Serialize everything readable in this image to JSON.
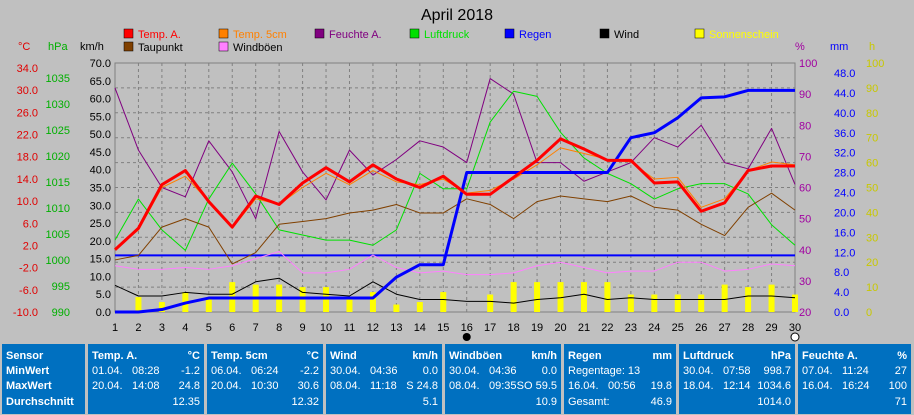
{
  "chart_data": {
    "type": "line",
    "title": "April 2018",
    "x": [
      1,
      2,
      3,
      4,
      5,
      6,
      7,
      8,
      9,
      10,
      11,
      12,
      13,
      14,
      15,
      16,
      17,
      18,
      19,
      20,
      21,
      22,
      23,
      24,
      25,
      26,
      27,
      28,
      29,
      30
    ],
    "axes": {
      "temp": {
        "label": "°C",
        "ticks": [
          "34.0",
          "30.0",
          "26.0",
          "22.0",
          "18.0",
          "14.0",
          "10.0",
          "6.0",
          "2.0",
          "-2.0",
          "-6.0",
          "-10.0"
        ],
        "color": "#e00000",
        "range": [
          -10,
          34
        ]
      },
      "hpa": {
        "label": "hPa",
        "ticks": [
          "1035",
          "1030",
          "1025",
          "1020",
          "1015",
          "1010",
          "1005",
          "1000",
          "995",
          "990"
        ],
        "color": "#00b000",
        "range": [
          988,
          1036.5
        ]
      },
      "kmh": {
        "label": "km/h",
        "ticks": [
          "70.0",
          "65.0",
          "60.0",
          "55.0",
          "50.0",
          "45.0",
          "40.0",
          "35.0",
          "30.0",
          "25.0",
          "20.0",
          "15.0",
          "10.0",
          "5.0",
          "0.0"
        ],
        "color": "#000000",
        "range": [
          0,
          70
        ]
      },
      "pct": {
        "label": "%",
        "ticks": [
          "100",
          "90",
          "80",
          "70",
          "60",
          "50",
          "40",
          "30",
          "20"
        ],
        "color": "#a000a0",
        "range": [
          20,
          100
        ]
      },
      "mm": {
        "label": "mm",
        "ticks": [
          "48.0",
          "44.0",
          "40.0",
          "36.0",
          "32.0",
          "28.0",
          "24.0",
          "20.0",
          "16.0",
          "12.0",
          "8.0",
          "4.0",
          "0.0"
        ],
        "color": "#0000ff",
        "range": [
          0,
          50
        ]
      },
      "h": {
        "label": "h",
        "ticks": [
          "100",
          "90",
          "80",
          "70",
          "60",
          "50",
          "40",
          "30",
          "20",
          "10",
          "0"
        ],
        "color": "#c8c800",
        "range": [
          0,
          100
        ]
      }
    },
    "legend": [
      {
        "name": "Temp. A.",
        "color": "#ff0000"
      },
      {
        "name": "Temp. 5cm",
        "color": "#ff8000"
      },
      {
        "name": "Feuchte A.",
        "color": "#800080"
      },
      {
        "name": "Luftdruck",
        "color": "#00e000"
      },
      {
        "name": "Regen",
        "color": "#0000ff"
      },
      {
        "name": "Wind",
        "color": "#000000"
      },
      {
        "name": "Sonnenschein",
        "color": "#ffff00"
      },
      {
        "name": "Taupunkt",
        "color": "#804000"
      },
      {
        "name": "Windböen",
        "color": "#ff80ff"
      }
    ],
    "series": [
      {
        "name": "Temp. A.",
        "axis": "temp",
        "color": "#ff0000",
        "width": 3,
        "values": [
          1.0,
          4.8,
          12.5,
          15.0,
          9.5,
          5.0,
          10.5,
          9.0,
          12.8,
          15.5,
          13.0,
          16.0,
          13.5,
          12.0,
          14.0,
          10.8,
          10.8,
          13.8,
          16.8,
          20.6,
          18.8,
          16.8,
          16.8,
          12.8,
          13.0,
          7.8,
          9.3,
          15.0,
          15.8,
          15.8
        ]
      },
      {
        "name": "Temp. 5cm",
        "axis": "temp",
        "color": "#ff8000",
        "width": 1,
        "values": [
          1.2,
          4.5,
          12.0,
          14.0,
          9.5,
          4.8,
          10.0,
          9.0,
          12.0,
          14.5,
          12.5,
          15.0,
          13.0,
          12.5,
          13.5,
          11.0,
          11.5,
          13.5,
          16.0,
          19.0,
          18.0,
          17.0,
          16.5,
          13.5,
          13.8,
          8.5,
          10.0,
          15.0,
          16.5,
          16.0
        ]
      },
      {
        "name": "Taupunkt",
        "axis": "temp",
        "color": "#804000",
        "width": 1,
        "values": [
          -0.8,
          0.0,
          5.0,
          6.5,
          5.0,
          -1.5,
          0.5,
          5.5,
          6.0,
          6.5,
          7.5,
          8.0,
          9.0,
          7.5,
          7.5,
          10.0,
          9.0,
          6.5,
          9.5,
          10.5,
          10.0,
          9.5,
          10.5,
          8.5,
          8.0,
          5.5,
          3.5,
          8.5,
          11.0,
          8.0
        ]
      },
      {
        "name": "Feuchte A.",
        "axis": "pct",
        "color": "#800080",
        "width": 1,
        "values": [
          92,
          72,
          60,
          57,
          75,
          65,
          50,
          78,
          65,
          56,
          72,
          64,
          69,
          75,
          73,
          68,
          95,
          90,
          68,
          68,
          62,
          65,
          68,
          76,
          73,
          80,
          68,
          66,
          79,
          61
        ]
      },
      {
        "name": "Luftdruck",
        "axis": "hpa",
        "color": "#00e000",
        "width": 1,
        "values": [
          1002,
          1010,
          1004,
          1000,
          1010,
          1017,
          1011,
          1004,
          1003,
          1002,
          1002,
          1001,
          1004,
          1015,
          1012,
          1012,
          1025,
          1031,
          1030,
          1023,
          1018,
          1015,
          1013,
          1010,
          1012,
          1013,
          1013,
          1011,
          1005,
          1001
        ]
      },
      {
        "name": "Regen",
        "axis": "mm",
        "color": "#0000ff",
        "width": 3,
        "values": [
          0,
          0,
          0.5,
          1.8,
          2.8,
          2.8,
          2.8,
          2.8,
          2.8,
          2.8,
          2.8,
          2.8,
          7.0,
          9.5,
          9.5,
          28.0,
          28.0,
          28.0,
          28.0,
          28.0,
          28.0,
          28.0,
          35.0,
          36.0,
          39.0,
          43.0,
          43.2,
          44.5,
          44.5,
          44.5
        ]
      },
      {
        "name": "Wind",
        "axis": "kmh",
        "color": "#000000",
        "width": 1,
        "values": [
          7.5,
          4.5,
          4.5,
          5.5,
          5.0,
          5.0,
          8.5,
          9.5,
          5.5,
          5.0,
          4.5,
          8.5,
          5.0,
          3.5,
          3.5,
          3.0,
          3.0,
          2.5,
          3.5,
          4.0,
          5.0,
          3.5,
          4.0,
          3.5,
          3.5,
          3.5,
          3.5,
          4.5,
          4.5,
          4.0
        ]
      },
      {
        "name": "Windböen",
        "axis": "kmh",
        "color": "#ff80ff",
        "width": 1,
        "values": [
          13.0,
          12.0,
          12.0,
          12.5,
          12.0,
          13.0,
          15.0,
          17.0,
          11.0,
          11.0,
          12.0,
          16.0,
          12.5,
          11.0,
          11.5,
          10.5,
          10.5,
          11.0,
          13.0,
          14.0,
          12.5,
          11.0,
          11.5,
          11.5,
          14.0,
          14.0,
          11.5,
          12.0,
          13.5,
          13.0
        ]
      },
      {
        "name": "Sonnenschein",
        "axis": "h",
        "color": "#ffff00",
        "type": "bar",
        "values": [
          2,
          9,
          7,
          10,
          7,
          15,
          12,
          14,
          10,
          11,
          5,
          8,
          4,
          1,
          8,
          5,
          9,
          3,
          13,
          13,
          12,
          12,
          13,
          7,
          6,
          8,
          10,
          11,
          9,
          12
        ]
      }
    ],
    "sun_bars": [
      [
        3,
        0
      ],
      [
        5,
        1
      ],
      [
        7,
        2
      ],
      [
        9,
        0
      ],
      [
        12,
        3
      ],
      [
        6,
        1
      ],
      [
        8,
        2
      ],
      [
        6,
        0
      ],
      [
        5,
        2
      ],
      [
        10,
        1
      ],
      [
        12,
        0
      ],
      [
        11,
        3
      ],
      [
        9,
        2
      ],
      [
        7,
        1
      ],
      [
        11,
        0
      ],
      [
        9,
        2
      ],
      [
        7,
        3
      ],
      [
        6,
        1
      ],
      [
        10,
        0
      ],
      [
        11,
        2
      ],
      [
        13,
        3
      ]
    ],
    "extra_bars": [
      {
        "x": 2,
        "v": 6
      },
      {
        "x": 3,
        "v": 4
      },
      {
        "x": 4,
        "v": 8
      },
      {
        "x": 5,
        "v": 6
      },
      {
        "x": 6,
        "v": 12
      },
      {
        "x": 7,
        "v": 11
      },
      {
        "x": 8,
        "v": 11
      },
      {
        "x": 9,
        "v": 10
      },
      {
        "x": 10,
        "v": 10
      },
      {
        "x": 11,
        "v": 5
      },
      {
        "x": 12,
        "v": 8
      },
      {
        "x": 13,
        "v": 3
      },
      {
        "x": 14,
        "v": 4
      },
      {
        "x": 15,
        "v": 8
      },
      {
        "x": 17,
        "v": 7
      },
      {
        "x": 18,
        "v": 12
      },
      {
        "x": 19,
        "v": 12
      },
      {
        "x": 20,
        "v": 12
      },
      {
        "x": 21,
        "v": 12
      },
      {
        "x": 22,
        "v": 12
      },
      {
        "x": 23,
        "v": 7
      },
      {
        "x": 24,
        "v": 7
      },
      {
        "x": 25,
        "v": 7
      },
      {
        "x": 26,
        "v": 7
      },
      {
        "x": 27,
        "v": 11
      },
      {
        "x": 28,
        "v": 10
      },
      {
        "x": 29,
        "v": 11
      },
      {
        "x": 30,
        "v": 7
      }
    ],
    "grid": true
  },
  "footer": {
    "sensor": {
      "title": "Sensor",
      "min": "MinWert",
      "max": "MaxWert",
      "avg": "Durchschnitt"
    },
    "cards": [
      {
        "title": "Temp. A.",
        "unit": "°C",
        "min_date": "01.04.",
        "min_time": "08:28",
        "min_val": "-1.2",
        "max_date": "20.04.",
        "max_time": "14:08",
        "max_val": "24.8",
        "avg": "12.35"
      },
      {
        "title": "Temp. 5cm",
        "unit": "°C",
        "min_date": "06.04.",
        "min_time": "06:24",
        "min_val": "-2.2",
        "max_date": "20.04.",
        "max_time": "10:30",
        "max_val": "30.6",
        "avg": "12.32"
      },
      {
        "title": "Wind",
        "unit": "km/h",
        "min_date": "30.04.",
        "min_time": "04:36",
        "min_val": "0.0",
        "max_date": "08.04.",
        "max_time": "11:18",
        "max_val": "S 24.8",
        "avg": "5.1"
      },
      {
        "title": "Windböen",
        "unit": "km/h",
        "min_date": "30.04.",
        "min_time": "04:36",
        "min_val": "0.0",
        "max_date": "08.04.",
        "max_time": "09:35",
        "max_val": "SO 59.5",
        "avg": "10.9"
      },
      {
        "title": "Regen",
        "unit": "mm",
        "min_date": "Regentage: 13",
        "min_time": "",
        "min_val": "",
        "max_date": "16.04.",
        "max_time": "00:56",
        "max_val": "19.8",
        "avg_label": "Gesamt:",
        "avg": "46.9"
      },
      {
        "title": "Luftdruck",
        "unit": "hPa",
        "min_date": "30.04.",
        "min_time": "07:58",
        "min_val": "998.7",
        "max_date": "18.04.",
        "max_time": "12:14",
        "max_val": "1034.6",
        "avg": "1014.0"
      },
      {
        "title": "Feuchte A.",
        "unit": "%",
        "min_date": "07.04.",
        "min_time": "11:24",
        "min_val": "27",
        "max_date": "16.04.",
        "max_time": "16:24",
        "max_val": "100",
        "avg": "71"
      }
    ]
  }
}
